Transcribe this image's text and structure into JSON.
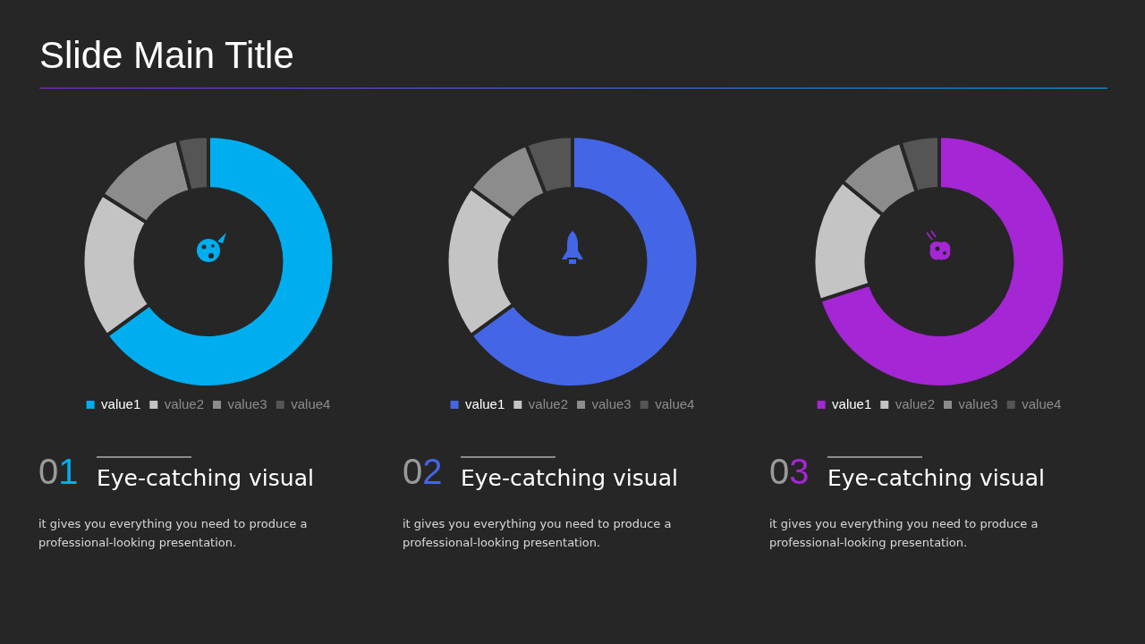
{
  "chart_data": [
    {
      "type": "other",
      "title": "Slide Main Title"
    },
    {
      "type": "donut",
      "categories": [
        "value1",
        "value2",
        "value3",
        "value4"
      ],
      "values": [
        65,
        19,
        12,
        4
      ],
      "colors": [
        "#00aeef",
        "#c4c4c4",
        "#8c8c8c",
        "#555555"
      ],
      "legend": "bottom",
      "annotations": [
        "01",
        "Eye-catching visual",
        "it gives you everything you need to produce a professional-looking presentation."
      ]
    },
    {
      "type": "donut",
      "categories": [
        "value1",
        "value2",
        "value3",
        "value4"
      ],
      "values": [
        65,
        20,
        9,
        6
      ],
      "colors": [
        "#4466e6",
        "#c4c4c4",
        "#8c8c8c",
        "#555555"
      ],
      "legend": "bottom",
      "annotations": [
        "02",
        "Eye-catching visual",
        "it gives you everything you need to produce a professional-looking presentation."
      ]
    },
    {
      "type": "donut",
      "categories": [
        "value1",
        "value2",
        "value3",
        "value4"
      ],
      "values": [
        70,
        16,
        9,
        5
      ],
      "colors": [
        "#a526d4",
        "#c4c4c4",
        "#8c8c8c",
        "#555555"
      ],
      "legend": "bottom",
      "annotations": [
        "03",
        "Eye-catching visual",
        "it gives you everything you need to produce a professional-looking presentation."
      ]
    }
  ]
}
